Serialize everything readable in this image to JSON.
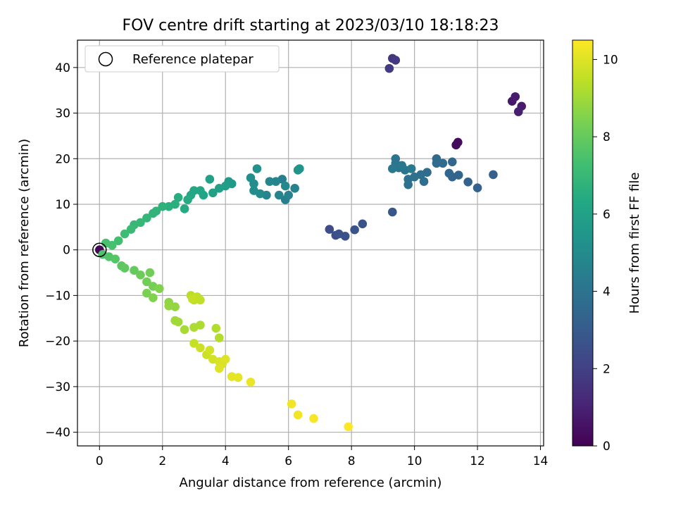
{
  "chart_data": {
    "type": "scatter",
    "title": "FOV centre drift starting at 2023/03/10 18:18:23",
    "xlabel": "Angular distance from reference (arcmin)",
    "ylabel": "Rotation from reference (arcmin)",
    "xlim": [
      -0.7,
      14.1
    ],
    "ylim": [
      -43.0,
      46.0
    ],
    "xticks": [
      0,
      2,
      4,
      6,
      8,
      10,
      12,
      14
    ],
    "yticks": [
      -40,
      -30,
      -20,
      -10,
      0,
      10,
      20,
      30,
      40
    ],
    "grid": true,
    "legend": {
      "placement": "top-left",
      "entries": [
        "Reference platepar"
      ]
    },
    "reference_point": {
      "x": 0,
      "y": 0
    },
    "colorbar": {
      "label": "Hours from first FF file",
      "colormap": "viridis",
      "range": [
        0,
        10.5
      ],
      "ticks": [
        0,
        2,
        4,
        6,
        8,
        10
      ]
    },
    "points": [
      {
        "x": 0.0,
        "y": 0.0,
        "h": 0.1
      },
      {
        "x": 11.32,
        "y": 23.0,
        "h": 0.3
      },
      {
        "x": 11.38,
        "y": 23.6,
        "h": 0.3
      },
      {
        "x": 13.1,
        "y": 32.6,
        "h": 0.7
      },
      {
        "x": 13.2,
        "y": 33.6,
        "h": 0.8
      },
      {
        "x": 13.4,
        "y": 31.5,
        "h": 0.8
      },
      {
        "x": 13.3,
        "y": 30.3,
        "h": 0.9
      },
      {
        "x": 9.3,
        "y": 42.0,
        "h": 1.6
      },
      {
        "x": 9.4,
        "y": 41.6,
        "h": 1.7
      },
      {
        "x": 9.2,
        "y": 39.8,
        "h": 1.8
      },
      {
        "x": 7.3,
        "y": 4.5,
        "h": 2.4
      },
      {
        "x": 7.5,
        "y": 3.2,
        "h": 2.5
      },
      {
        "x": 7.6,
        "y": 3.5,
        "h": 2.6
      },
      {
        "x": 7.8,
        "y": 3.0,
        "h": 2.6
      },
      {
        "x": 8.1,
        "y": 4.4,
        "h": 2.7
      },
      {
        "x": 8.35,
        "y": 5.7,
        "h": 2.7
      },
      {
        "x": 9.3,
        "y": 8.3,
        "h": 2.8
      },
      {
        "x": 12.5,
        "y": 16.5,
        "h": 3.2
      },
      {
        "x": 12.0,
        "y": 13.6,
        "h": 3.3
      },
      {
        "x": 11.7,
        "y": 14.9,
        "h": 3.3
      },
      {
        "x": 11.4,
        "y": 16.4,
        "h": 3.4
      },
      {
        "x": 11.2,
        "y": 16.0,
        "h": 3.4
      },
      {
        "x": 11.1,
        "y": 16.8,
        "h": 3.5
      },
      {
        "x": 11.2,
        "y": 19.3,
        "h": 3.5
      },
      {
        "x": 10.9,
        "y": 19.0,
        "h": 3.6
      },
      {
        "x": 10.7,
        "y": 20.0,
        "h": 3.6
      },
      {
        "x": 10.7,
        "y": 19.0,
        "h": 3.7
      },
      {
        "x": 10.4,
        "y": 17.0,
        "h": 3.7
      },
      {
        "x": 10.3,
        "y": 15.0,
        "h": 3.8
      },
      {
        "x": 10.2,
        "y": 16.5,
        "h": 3.8
      },
      {
        "x": 10.0,
        "y": 16.0,
        "h": 3.9
      },
      {
        "x": 9.8,
        "y": 15.5,
        "h": 3.9
      },
      {
        "x": 9.8,
        "y": 14.3,
        "h": 3.9
      },
      {
        "x": 9.7,
        "y": 17.5,
        "h": 4.0
      },
      {
        "x": 9.5,
        "y": 18.0,
        "h": 4.0
      },
      {
        "x": 9.4,
        "y": 19.0,
        "h": 4.1
      },
      {
        "x": 9.4,
        "y": 20.0,
        "h": 4.1
      },
      {
        "x": 9.3,
        "y": 17.8,
        "h": 4.2
      },
      {
        "x": 9.6,
        "y": 18.5,
        "h": 4.2
      },
      {
        "x": 9.9,
        "y": 17.8,
        "h": 4.3
      },
      {
        "x": 5.8,
        "y": 15.5,
        "h": 4.5
      },
      {
        "x": 5.9,
        "y": 11.0,
        "h": 4.5
      },
      {
        "x": 6.0,
        "y": 12.0,
        "h": 4.6
      },
      {
        "x": 6.2,
        "y": 13.5,
        "h": 4.6
      },
      {
        "x": 5.7,
        "y": 12.0,
        "h": 4.7
      },
      {
        "x": 5.6,
        "y": 15.0,
        "h": 4.7
      },
      {
        "x": 5.4,
        "y": 15.0,
        "h": 4.8
      },
      {
        "x": 5.3,
        "y": 12.0,
        "h": 4.8
      },
      {
        "x": 5.9,
        "y": 14.0,
        "h": 4.9
      },
      {
        "x": 5.1,
        "y": 12.3,
        "h": 5.0
      },
      {
        "x": 4.9,
        "y": 13.0,
        "h": 5.1
      },
      {
        "x": 4.9,
        "y": 14.5,
        "h": 5.1
      },
      {
        "x": 4.8,
        "y": 15.8,
        "h": 5.2
      },
      {
        "x": 5.0,
        "y": 17.8,
        "h": 5.3
      },
      {
        "x": 6.3,
        "y": 17.5,
        "h": 5.4
      },
      {
        "x": 6.35,
        "y": 17.8,
        "h": 5.4
      },
      {
        "x": 4.2,
        "y": 14.5,
        "h": 5.6
      },
      {
        "x": 4.1,
        "y": 15.0,
        "h": 5.7
      },
      {
        "x": 4.0,
        "y": 14.0,
        "h": 5.8
      },
      {
        "x": 3.8,
        "y": 13.5,
        "h": 5.9
      },
      {
        "x": 3.6,
        "y": 12.5,
        "h": 6.0
      },
      {
        "x": 3.5,
        "y": 15.5,
        "h": 6.0
      },
      {
        "x": 3.3,
        "y": 12.0,
        "h": 6.1
      },
      {
        "x": 3.2,
        "y": 13.0,
        "h": 6.2
      },
      {
        "x": 3.0,
        "y": 13.0,
        "h": 6.2
      },
      {
        "x": 2.9,
        "y": 12.0,
        "h": 6.3
      },
      {
        "x": 2.8,
        "y": 11.0,
        "h": 6.4
      },
      {
        "x": 2.7,
        "y": 9.0,
        "h": 6.4
      },
      {
        "x": 2.5,
        "y": 11.5,
        "h": 6.5
      },
      {
        "x": 2.4,
        "y": 10.0,
        "h": 6.6
      },
      {
        "x": 2.2,
        "y": 9.5,
        "h": 6.6
      },
      {
        "x": 2.0,
        "y": 9.5,
        "h": 6.7
      },
      {
        "x": 1.8,
        "y": 8.5,
        "h": 6.8
      },
      {
        "x": 1.7,
        "y": 8.0,
        "h": 6.8
      },
      {
        "x": 1.5,
        "y": 7.0,
        "h": 6.9
      },
      {
        "x": 1.3,
        "y": 6.0,
        "h": 7.0
      },
      {
        "x": 1.1,
        "y": 5.5,
        "h": 7.0
      },
      {
        "x": 1.0,
        "y": 4.5,
        "h": 7.1
      },
      {
        "x": 0.8,
        "y": 3.5,
        "h": 7.2
      },
      {
        "x": 0.6,
        "y": 2.0,
        "h": 7.3
      },
      {
        "x": 0.4,
        "y": 1.0,
        "h": 7.4
      },
      {
        "x": 0.2,
        "y": 1.5,
        "h": 7.4
      },
      {
        "x": 0.1,
        "y": -1.0,
        "h": 7.5
      },
      {
        "x": 0.3,
        "y": -1.5,
        "h": 7.6
      },
      {
        "x": 0.5,
        "y": -2.0,
        "h": 7.7
      },
      {
        "x": 0.7,
        "y": -3.5,
        "h": 7.8
      },
      {
        "x": 0.8,
        "y": -4.0,
        "h": 7.9
      },
      {
        "x": 1.1,
        "y": -4.5,
        "h": 8.0
      },
      {
        "x": 1.3,
        "y": -5.5,
        "h": 8.1
      },
      {
        "x": 1.5,
        "y": -7.0,
        "h": 8.2
      },
      {
        "x": 1.6,
        "y": -5.0,
        "h": 8.2
      },
      {
        "x": 1.7,
        "y": -8.0,
        "h": 8.3
      },
      {
        "x": 1.5,
        "y": -9.5,
        "h": 8.4
      },
      {
        "x": 1.7,
        "y": -10.5,
        "h": 8.5
      },
      {
        "x": 1.9,
        "y": -8.5,
        "h": 8.5
      },
      {
        "x": 2.2,
        "y": -11.5,
        "h": 8.7
      },
      {
        "x": 2.2,
        "y": -12.3,
        "h": 8.8
      },
      {
        "x": 2.4,
        "y": -12.5,
        "h": 8.8
      },
      {
        "x": 2.4,
        "y": -15.5,
        "h": 9.0
      },
      {
        "x": 2.5,
        "y": -15.8,
        "h": 9.0
      },
      {
        "x": 2.7,
        "y": -17.5,
        "h": 9.1
      },
      {
        "x": 3.0,
        "y": -17.0,
        "h": 9.2
      },
      {
        "x": 3.2,
        "y": -16.5,
        "h": 9.2
      },
      {
        "x": 3.8,
        "y": -19.3,
        "h": 9.3
      },
      {
        "x": 3.7,
        "y": -17.2,
        "h": 9.3
      },
      {
        "x": 2.9,
        "y": -10.0,
        "h": 9.4
      },
      {
        "x": 3.0,
        "y": -11.0,
        "h": 9.4
      },
      {
        "x": 3.1,
        "y": -10.3,
        "h": 9.5
      },
      {
        "x": 3.2,
        "y": -11.0,
        "h": 9.5
      },
      {
        "x": 2.95,
        "y": -10.8,
        "h": 9.6
      },
      {
        "x": 3.0,
        "y": -20.5,
        "h": 9.6
      },
      {
        "x": 3.2,
        "y": -21.5,
        "h": 9.7
      },
      {
        "x": 3.4,
        "y": -23.0,
        "h": 9.7
      },
      {
        "x": 3.5,
        "y": -22.0,
        "h": 9.8
      },
      {
        "x": 3.6,
        "y": -24.0,
        "h": 9.8
      },
      {
        "x": 3.8,
        "y": -24.5,
        "h": 9.9
      },
      {
        "x": 3.9,
        "y": -25.0,
        "h": 9.9
      },
      {
        "x": 3.8,
        "y": -26.0,
        "h": 10.0
      },
      {
        "x": 4.0,
        "y": -24.0,
        "h": 10.0
      },
      {
        "x": 4.2,
        "y": -27.8,
        "h": 10.1
      },
      {
        "x": 4.4,
        "y": -28.0,
        "h": 10.1
      },
      {
        "x": 4.8,
        "y": -29.0,
        "h": 10.2
      },
      {
        "x": 6.1,
        "y": -33.8,
        "h": 10.3
      },
      {
        "x": 6.3,
        "y": -36.2,
        "h": 10.3
      },
      {
        "x": 6.8,
        "y": -37.0,
        "h": 10.4
      },
      {
        "x": 7.9,
        "y": -38.8,
        "h": 10.5
      }
    ]
  }
}
